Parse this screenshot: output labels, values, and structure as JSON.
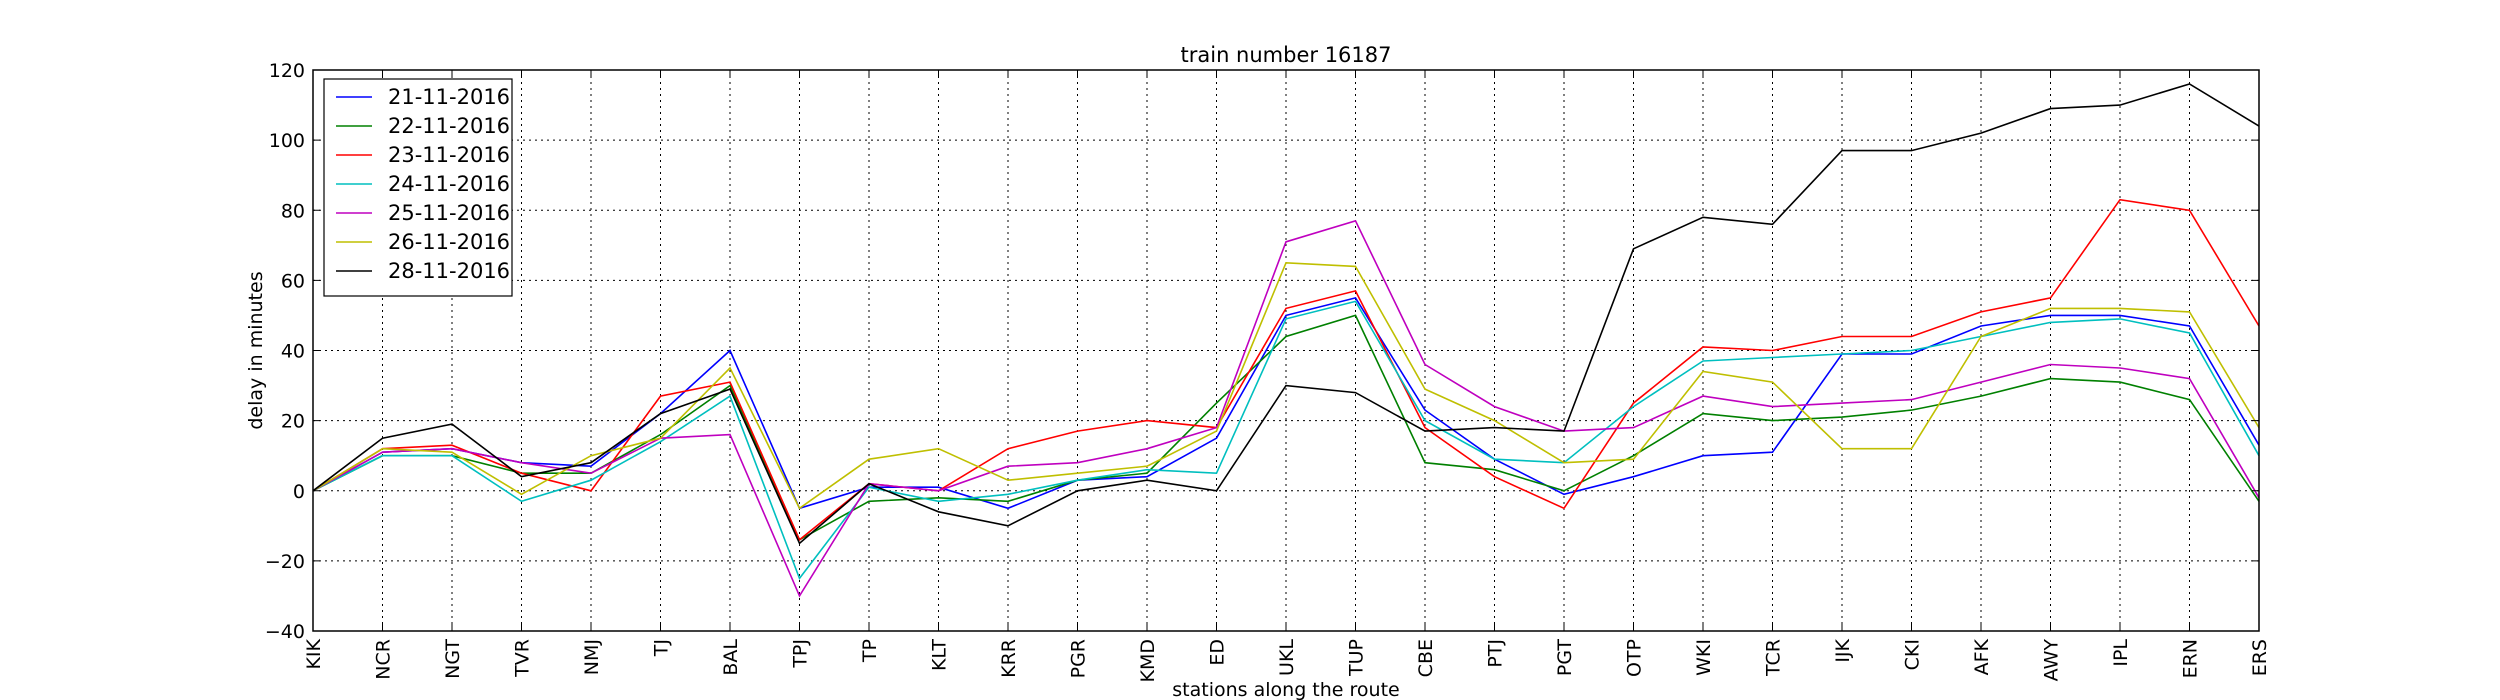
{
  "chart_data": {
    "type": "line",
    "title": "train number 16187",
    "xlabel": "stations along the route",
    "ylabel": "delay in minutes",
    "categories": [
      "KIK",
      "NCR",
      "NGT",
      "TVR",
      "NMJ",
      "TJ",
      "BAL",
      "TPJ",
      "TP",
      "KLT",
      "KRR",
      "PGR",
      "KMD",
      "ED",
      "UKL",
      "TUP",
      "CBE",
      "PTJ",
      "PGT",
      "OTP",
      "WKI",
      "TCR",
      "IJK",
      "CKI",
      "AFK",
      "AWY",
      "IPL",
      "ERN",
      "ERS"
    ],
    "ylim": [
      -40,
      120
    ],
    "yticks": [
      -40,
      -20,
      0,
      20,
      40,
      60,
      80,
      100,
      120
    ],
    "grid": true,
    "legend_position": "top-left",
    "series": [
      {
        "name": "21-11-2016",
        "color": "#0000ff",
        "values": [
          0,
          11,
          12,
          8,
          7,
          22,
          40,
          -5,
          1,
          1,
          -5,
          3,
          4,
          15,
          50,
          55,
          23,
          9,
          -1,
          4,
          10,
          11,
          39,
          39,
          47,
          50,
          50,
          47,
          13
        ]
      },
      {
        "name": "22-11-2016",
        "color": "#008000",
        "values": [
          0,
          10,
          10,
          5,
          5,
          16,
          30,
          -14,
          -3,
          -2,
          -3,
          3,
          5,
          25,
          44,
          50,
          8,
          6,
          0,
          10,
          22,
          20,
          21,
          23,
          27,
          32,
          31,
          26,
          -3
        ]
      },
      {
        "name": "23-11-2016",
        "color": "#ff0000",
        "values": [
          0,
          12,
          13,
          5,
          0,
          27,
          31,
          -14,
          2,
          0,
          12,
          17,
          20,
          18,
          52,
          57,
          18,
          4,
          -5,
          25,
          41,
          40,
          44,
          44,
          51,
          55,
          83,
          80,
          47
        ]
      },
      {
        "name": "24-11-2016",
        "color": "#00bfbf",
        "values": [
          0,
          10,
          10,
          -3,
          3,
          14,
          27,
          -25,
          1,
          -3,
          -1,
          3,
          6,
          5,
          49,
          54,
          20,
          9,
          8,
          24,
          37,
          38,
          39,
          40,
          44,
          48,
          49,
          45,
          10
        ]
      },
      {
        "name": "25-11-2016",
        "color": "#bf00bf",
        "values": [
          0,
          11,
          12,
          8,
          5,
          15,
          16,
          -30,
          2,
          0,
          7,
          8,
          12,
          18,
          71,
          77,
          36,
          24,
          17,
          18,
          27,
          24,
          25,
          26,
          31,
          36,
          35,
          32,
          -2
        ]
      },
      {
        "name": "26-11-2016",
        "color": "#bfbf00",
        "values": [
          0,
          12,
          11,
          -1,
          10,
          15,
          35,
          -5,
          9,
          12,
          3,
          5,
          7,
          17,
          65,
          64,
          29,
          20,
          8,
          9,
          34,
          31,
          12,
          12,
          44,
          52,
          52,
          51,
          18
        ]
      },
      {
        "name": "28-11-2016",
        "color": "#000000",
        "values": [
          0,
          15,
          19,
          4,
          8,
          22,
          29,
          -15,
          2,
          -6,
          -10,
          0,
          3,
          0,
          30,
          28,
          17,
          18,
          17,
          69,
          78,
          76,
          97,
          97,
          102,
          109,
          110,
          116,
          104
        ]
      }
    ]
  }
}
